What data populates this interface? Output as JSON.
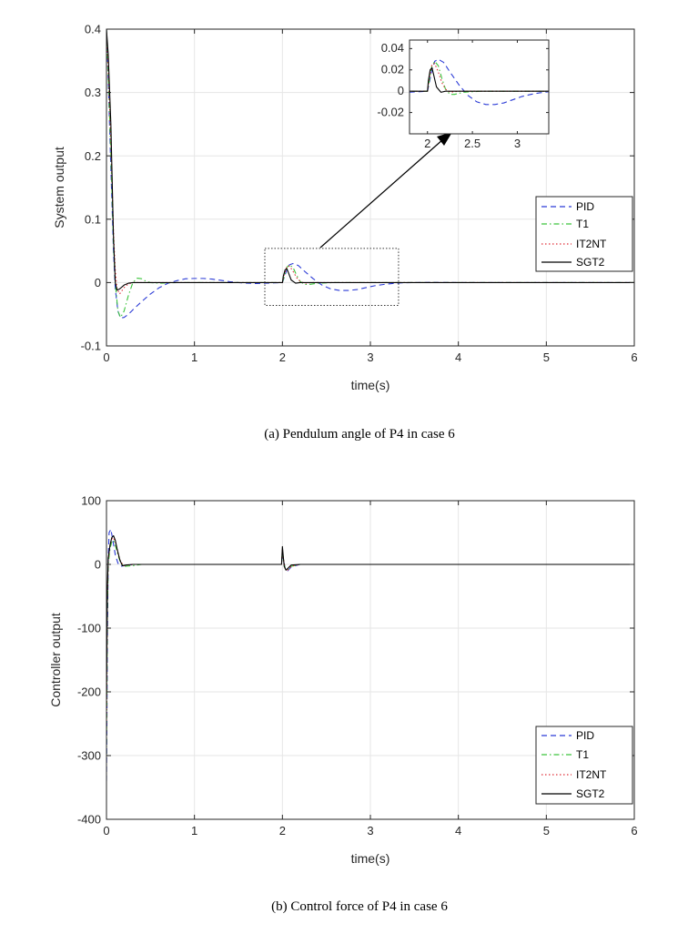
{
  "colors": {
    "PID": "#2b3bd6",
    "T1": "#3cc43c",
    "IT2NT": "#e0303a",
    "SGT2": "#000000"
  },
  "chart_data": [
    {
      "type": "line",
      "caption": "(a) Pendulum angle of P4 in case 6",
      "xlabel": "time(s)",
      "ylabel": "System output",
      "xlim": [
        0,
        6
      ],
      "ylim": [
        -0.1,
        0.4
      ],
      "xticks": [
        0,
        1,
        2,
        3,
        4,
        5,
        6
      ],
      "yticks": [
        -0.1,
        0,
        0.1,
        0.2,
        0.3,
        0.4
      ],
      "grid": true,
      "legend_position": "right",
      "legend_entries": [
        "PID",
        "T1",
        "IT2NT",
        "SGT2"
      ],
      "series": [
        {
          "name": "PID",
          "style": "dashed",
          "x": [
            0,
            0.02,
            0.05,
            0.08,
            0.1,
            0.13,
            0.16,
            0.2,
            0.25,
            0.3,
            0.4,
            0.5,
            0.6,
            0.7,
            0.8,
            0.9,
            1.0,
            1.1,
            1.2,
            1.3,
            1.4,
            1.5,
            1.6,
            1.7,
            1.8,
            1.9,
            2.0,
            2.02,
            2.05,
            2.08,
            2.12,
            2.18,
            2.25,
            2.35,
            2.45,
            2.55,
            2.65,
            2.75,
            2.85,
            2.95,
            3.05,
            3.15,
            3.25,
            3.35,
            3.5,
            3.7,
            4.0,
            4.5,
            5.0,
            6.0
          ],
          "y": [
            0.4,
            0.32,
            0.18,
            0.05,
            -0.01,
            -0.045,
            -0.056,
            -0.055,
            -0.05,
            -0.043,
            -0.03,
            -0.018,
            -0.008,
            -0.001,
            0.003,
            0.006,
            0.0065,
            0.0065,
            0.0055,
            0.0035,
            0.0015,
            0.0,
            -0.001,
            -0.0015,
            -0.001,
            -0.0005,
            0.0,
            0.008,
            0.02,
            0.028,
            0.03,
            0.027,
            0.018,
            0.006,
            -0.004,
            -0.01,
            -0.0125,
            -0.0125,
            -0.011,
            -0.008,
            -0.005,
            -0.003,
            -0.0015,
            -0.0005,
            0.0,
            0.0003,
            0.0,
            0.0,
            0.0,
            0.0
          ]
        },
        {
          "name": "T1",
          "style": "dashdot",
          "x": [
            0,
            0.02,
            0.05,
            0.08,
            0.1,
            0.13,
            0.16,
            0.2,
            0.25,
            0.3,
            0.35,
            0.4,
            0.45,
            0.5,
            0.6,
            0.8,
            1.0,
            1.5,
            2.0,
            2.02,
            2.05,
            2.08,
            2.12,
            2.16,
            2.2,
            2.25,
            2.3,
            2.4,
            2.6,
            3.0,
            4.0,
            6.0
          ],
          "y": [
            0.4,
            0.33,
            0.2,
            0.06,
            0.0,
            -0.045,
            -0.055,
            -0.045,
            -0.02,
            0.0,
            0.007,
            0.006,
            0.002,
            0.0,
            -0.001,
            0.0,
            0.0,
            0.0,
            0.0,
            0.01,
            0.024,
            0.028,
            0.024,
            0.012,
            0.002,
            -0.003,
            -0.003,
            -0.001,
            0.0,
            0.0,
            0.0,
            0.0
          ]
        },
        {
          "name": "IT2NT",
          "style": "dotted",
          "x": [
            0,
            0.02,
            0.05,
            0.08,
            0.1,
            0.12,
            0.15,
            0.2,
            0.25,
            0.3,
            0.4,
            0.6,
            1.0,
            2.0,
            2.02,
            2.05,
            2.08,
            2.12,
            2.16,
            2.2,
            2.25,
            2.35,
            2.5,
            3.0,
            4.0,
            6.0
          ],
          "y": [
            0.4,
            0.34,
            0.22,
            0.08,
            0.02,
            -0.01,
            -0.018,
            -0.008,
            -0.002,
            0.0,
            0.0,
            0.0,
            0.0,
            0.0,
            0.012,
            0.025,
            0.026,
            0.018,
            0.008,
            0.002,
            -0.001,
            0.0,
            0.0,
            0.0,
            0.0,
            0.0
          ]
        },
        {
          "name": "SGT2",
          "style": "solid",
          "x": [
            0,
            0.02,
            0.05,
            0.08,
            0.1,
            0.12,
            0.15,
            0.2,
            0.25,
            0.3,
            0.5,
            1.0,
            2.0,
            2.01,
            2.03,
            2.05,
            2.07,
            2.1,
            2.15,
            2.2,
            2.3,
            3.0,
            4.0,
            6.0
          ],
          "y": [
            0.4,
            0.36,
            0.25,
            0.07,
            0.0,
            -0.012,
            -0.01,
            -0.004,
            -0.001,
            0.0,
            0.0,
            0.0,
            0.0,
            0.01,
            0.02,
            0.022,
            0.015,
            0.004,
            -0.001,
            0.0,
            0.0,
            0.0,
            0.0,
            0.0
          ]
        }
      ],
      "inset": {
        "xlim": [
          1.8,
          3.35
        ],
        "ylim": [
          -0.04,
          0.048
        ],
        "xticks": [
          2,
          2.5,
          3
        ],
        "xtick_labels": [
          "2",
          "2.5",
          "3"
        ],
        "yticks": [
          -0.02,
          0,
          0.02,
          0.04
        ],
        "ytick_labels": [
          "-0.02",
          "0",
          "0.02",
          "0.04"
        ],
        "source_box": {
          "x": [
            1.8,
            3.32
          ],
          "y": [
            -0.036,
            0.054
          ]
        }
      }
    },
    {
      "type": "line",
      "caption": "(b) Control force of P4 in case 6",
      "xlabel": "time(s)",
      "ylabel": "Controller output",
      "xlim": [
        0,
        6
      ],
      "ylim": [
        -400,
        100
      ],
      "xticks": [
        0,
        1,
        2,
        3,
        4,
        5,
        6
      ],
      "yticks": [
        -400,
        -300,
        -200,
        -100,
        0,
        100
      ],
      "grid": true,
      "legend_position": "bottom-right",
      "legend_entries": [
        "PID",
        "T1",
        "IT2NT",
        "SGT2"
      ],
      "series": [
        {
          "name": "PID",
          "style": "dashed",
          "x": [
            0,
            0.005,
            0.01,
            0.02,
            0.03,
            0.05,
            0.07,
            0.1,
            0.13,
            0.16,
            0.2,
            0.3,
            0.5,
            1.0,
            1.99,
            2.0,
            2.01,
            2.03,
            2.06,
            2.1,
            2.2,
            2.5,
            6.0
          ],
          "y": [
            -340,
            -250,
            -120,
            10,
            50,
            55,
            40,
            15,
            2,
            -3,
            -2,
            0,
            0,
            0,
            0,
            18,
            8,
            -5,
            -10,
            -4,
            0,
            0,
            0
          ]
        },
        {
          "name": "T1",
          "style": "dashdot",
          "x": [
            0,
            0.005,
            0.01,
            0.02,
            0.04,
            0.06,
            0.08,
            0.1,
            0.13,
            0.16,
            0.2,
            0.3,
            0.4,
            0.6,
            1.0,
            1.99,
            2.0,
            2.01,
            2.03,
            2.06,
            2.1,
            2.2,
            6.0
          ],
          "y": [
            -300,
            -200,
            -80,
            0,
            25,
            35,
            38,
            30,
            15,
            3,
            -3,
            -2,
            0,
            0,
            0,
            0,
            22,
            10,
            -6,
            -9,
            -3,
            0,
            0
          ]
        },
        {
          "name": "IT2NT",
          "style": "dotted",
          "x": [
            0,
            0.005,
            0.01,
            0.02,
            0.04,
            0.06,
            0.08,
            0.1,
            0.13,
            0.16,
            0.2,
            0.3,
            0.5,
            1.0,
            1.99,
            2.0,
            2.01,
            2.03,
            2.06,
            2.1,
            2.2,
            6.0
          ],
          "y": [
            -280,
            -180,
            -60,
            5,
            30,
            40,
            42,
            35,
            18,
            4,
            -2,
            0,
            0,
            0,
            0,
            25,
            10,
            -6,
            -9,
            -3,
            0,
            0
          ]
        },
        {
          "name": "SGT2",
          "style": "solid",
          "x": [
            0,
            0.005,
            0.01,
            0.02,
            0.04,
            0.06,
            0.08,
            0.1,
            0.12,
            0.15,
            0.18,
            0.22,
            0.3,
            0.5,
            1.0,
            1.99,
            2.0,
            2.01,
            2.02,
            2.04,
            2.07,
            2.1,
            2.2,
            6.0
          ],
          "y": [
            -220,
            -140,
            -40,
            10,
            30,
            42,
            45,
            38,
            25,
            8,
            -2,
            -1,
            0,
            0,
            0,
            0,
            28,
            12,
            -3,
            -9,
            -5,
            -1,
            0,
            0
          ]
        }
      ]
    }
  ]
}
